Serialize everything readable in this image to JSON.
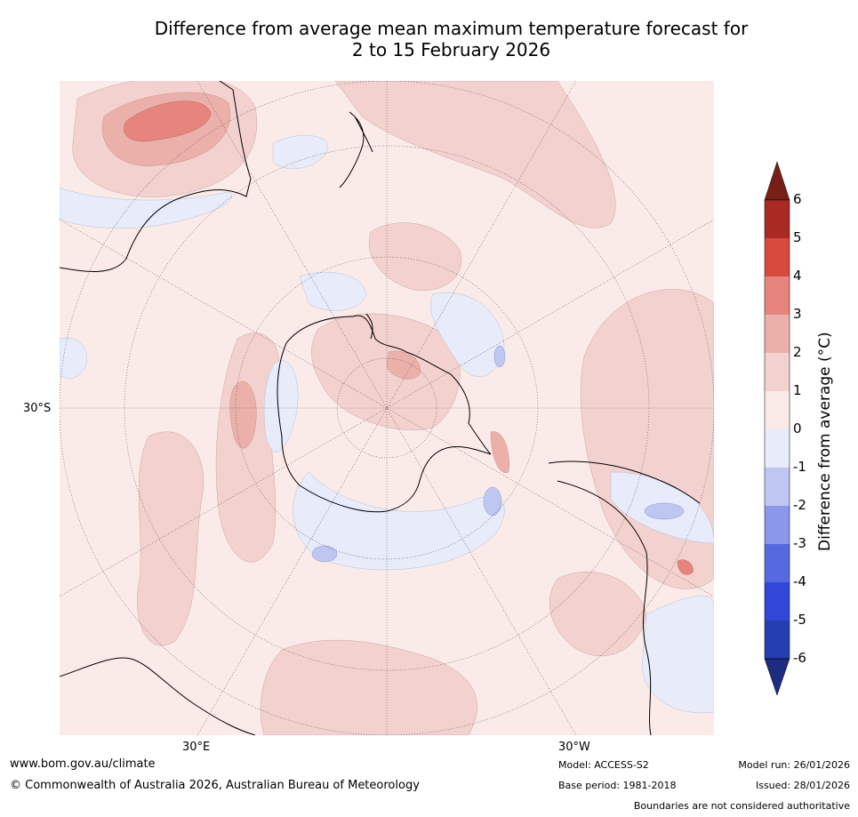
{
  "title": {
    "line1": "Difference from average mean maximum temperature forecast for",
    "line2": "2 to 15 February 2026"
  },
  "map": {
    "projection": "south polar stereographic",
    "lat_labels": [
      "30°S"
    ],
    "lon_labels": [
      "30°E",
      "30°W"
    ],
    "anomaly_colors": {
      "warm_1_2": "#f3d1cf",
      "warm_0_1": "#fbebe8",
      "warm_2_3": "#ecb0aa",
      "warm_3_4": "#e6857d",
      "cool_0_1": "#e7ebfa"
    }
  },
  "colorbar": {
    "label": "Difference from average ($^\\circ$C)",
    "label_text": "Difference from average (°C)",
    "ticks": [
      "6",
      "5",
      "4",
      "3",
      "2",
      "1",
      "0",
      "-1",
      "-2",
      "-3",
      "-4",
      "-5",
      "-6"
    ],
    "bins": [
      {
        "range": "> 6",
        "color": "#771f17"
      },
      {
        "range": "5 to 6",
        "color": "#a82a22"
      },
      {
        "range": "4 to 5",
        "color": "#d94a3e"
      },
      {
        "range": "3 to 4",
        "color": "#e6857d"
      },
      {
        "range": "2 to 3",
        "color": "#ecb0aa"
      },
      {
        "range": "1 to 2",
        "color": "#f3d1cf"
      },
      {
        "range": "0 to 1",
        "color": "#fbebe8"
      },
      {
        "range": "-1 to 0",
        "color": "#e7ebfa"
      },
      {
        "range": "-2 to -1",
        "color": "#bfc6f2"
      },
      {
        "range": "-3 to -2",
        "color": "#8a98ea"
      },
      {
        "range": "-4 to -3",
        "color": "#5569e0"
      },
      {
        "range": "-5 to -4",
        "color": "#3047d8"
      },
      {
        "range": "-6 to -5",
        "color": "#233fb0"
      },
      {
        "range": "< -6",
        "color": "#1d2b80"
      }
    ]
  },
  "footer": {
    "url": "www.bom.gov.au/climate",
    "copyright": "© Commonwealth of Australia 2026, Australian Bureau of Meteorology",
    "model": "Model: ACCESS-S2",
    "base_period": "Base period: 1981-2018",
    "model_run": "Model run: 26/01/2026",
    "issued": "Issued: 28/01/2026",
    "disclaimer": "Boundaries are not considered authoritative"
  }
}
